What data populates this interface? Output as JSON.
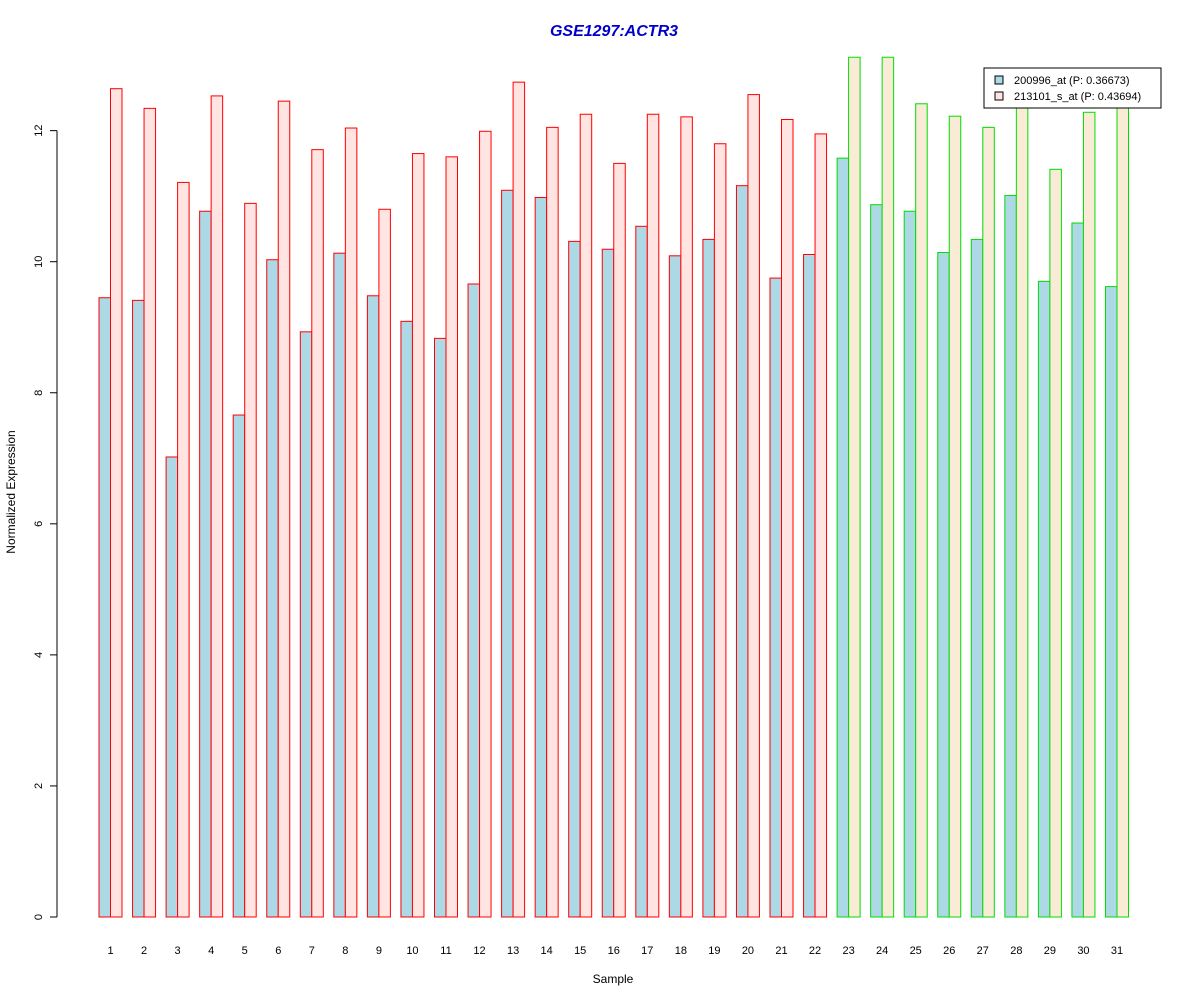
{
  "chart_data": {
    "type": "bar",
    "title": "GSE1297:ACTR3",
    "xlabel": "Sample",
    "ylabel": "Normalized Expression",
    "ylim": [
      0,
      13.2
    ],
    "yticks": [
      0,
      2,
      4,
      6,
      8,
      10,
      12
    ],
    "categories": [
      "1",
      "2",
      "3",
      "4",
      "5",
      "6",
      "7",
      "8",
      "9",
      "10",
      "11",
      "12",
      "13",
      "14",
      "15",
      "16",
      "17",
      "18",
      "19",
      "20",
      "21",
      "22",
      "23",
      "24",
      "25",
      "26",
      "27",
      "28",
      "29",
      "30",
      "31"
    ],
    "group_split_after": 22,
    "series": [
      {
        "name": "200996_at (P: 0.36673)",
        "fill": "#add8e6",
        "values": [
          9.45,
          9.41,
          7.02,
          10.77,
          7.66,
          10.03,
          8.93,
          10.13,
          9.48,
          9.09,
          8.83,
          9.66,
          11.09,
          10.98,
          10.31,
          10.19,
          10.54,
          10.09,
          10.34,
          11.16,
          9.75,
          10.11,
          11.58,
          10.87,
          10.77,
          10.14,
          10.34,
          11.01,
          9.7,
          10.59,
          9.62
        ]
      },
      {
        "name": "213101_s_at (P: 0.43694)",
        "fill_group1": "#ffe4e1",
        "fill_group2": "#faebd7",
        "values": [
          12.64,
          12.34,
          11.21,
          12.53,
          10.89,
          12.45,
          11.71,
          12.04,
          10.8,
          11.65,
          11.6,
          11.99,
          12.74,
          12.05,
          12.25,
          11.5,
          12.25,
          12.21,
          11.8,
          12.55,
          12.17,
          11.95,
          13.12,
          13.12,
          12.41,
          12.22,
          12.05,
          12.4,
          11.41,
          12.28,
          12.4
        ]
      }
    ],
    "group_outline_colors": [
      "#ff0000",
      "#00dd00"
    ],
    "legend_position": "top-right",
    "grid": false
  }
}
